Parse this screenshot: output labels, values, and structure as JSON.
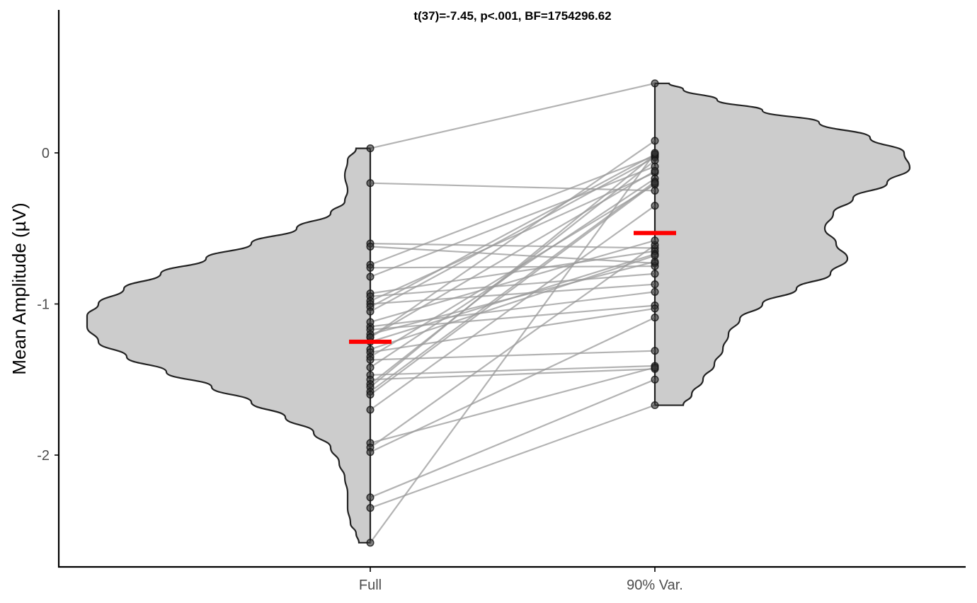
{
  "chart_data": {
    "type": "violin",
    "title": "t(37)=-7.45, p<.001, BF=1754296.62",
    "ylabel": "Mean Amplitude (µV)",
    "xlabel": "",
    "categories": [
      "Full",
      "90% Var."
    ],
    "ylim": [
      -2.75,
      0.95
    ],
    "yticks": [
      0,
      -1,
      -2
    ],
    "ytick_labels": [
      "0",
      "-1",
      "-2"
    ],
    "grid": false,
    "legend": "none",
    "colors": {
      "violin_fill": "#cccccc",
      "mean": "#ff0000",
      "points": "#333333",
      "lines": "#999999"
    },
    "means": [
      -1.25,
      -0.53
    ],
    "violin_density": {
      "Full": [
        [
          0.03,
          0.05
        ],
        [
          -0.05,
          0.08
        ],
        [
          -0.15,
          0.09
        ],
        [
          -0.25,
          0.08
        ],
        [
          -0.32,
          0.09
        ],
        [
          -0.4,
          0.14
        ],
        [
          -0.5,
          0.26
        ],
        [
          -0.6,
          0.42
        ],
        [
          -0.7,
          0.58
        ],
        [
          -0.8,
          0.74
        ],
        [
          -0.9,
          0.87
        ],
        [
          -1.0,
          0.96
        ],
        [
          -1.08,
          1.0
        ],
        [
          -1.15,
          1.0
        ],
        [
          -1.25,
          0.96
        ],
        [
          -1.35,
          0.86
        ],
        [
          -1.45,
          0.72
        ],
        [
          -1.55,
          0.56
        ],
        [
          -1.65,
          0.42
        ],
        [
          -1.75,
          0.3
        ],
        [
          -1.85,
          0.2
        ],
        [
          -1.95,
          0.14
        ],
        [
          -2.05,
          0.11
        ],
        [
          -2.15,
          0.09
        ],
        [
          -2.25,
          0.08
        ],
        [
          -2.35,
          0.08
        ],
        [
          -2.45,
          0.07
        ],
        [
          -2.52,
          0.05
        ],
        [
          -2.58,
          0.04
        ]
      ],
      "90% Var.": [
        [
          0.46,
          0.05
        ],
        [
          0.42,
          0.1
        ],
        [
          0.35,
          0.22
        ],
        [
          0.28,
          0.38
        ],
        [
          0.2,
          0.58
        ],
        [
          0.1,
          0.76
        ],
        [
          0.0,
          0.88
        ],
        [
          -0.1,
          0.9
        ],
        [
          -0.2,
          0.82
        ],
        [
          -0.3,
          0.7
        ],
        [
          -0.4,
          0.63
        ],
        [
          -0.5,
          0.6
        ],
        [
          -0.6,
          0.64
        ],
        [
          -0.7,
          0.68
        ],
        [
          -0.8,
          0.62
        ],
        [
          -0.9,
          0.5
        ],
        [
          -1.0,
          0.38
        ],
        [
          -1.1,
          0.3
        ],
        [
          -1.2,
          0.26
        ],
        [
          -1.3,
          0.24
        ],
        [
          -1.4,
          0.21
        ],
        [
          -1.5,
          0.17
        ],
        [
          -1.6,
          0.13
        ],
        [
          -1.67,
          0.1
        ]
      ]
    },
    "series": [
      {
        "name": "Full",
        "values": [
          0.03,
          -0.2,
          -0.6,
          -0.62,
          -0.74,
          -0.76,
          -0.82,
          -0.93,
          -0.95,
          -0.98,
          -1.0,
          -1.02,
          -1.05,
          -1.15,
          -1.17,
          -1.2,
          -1.22,
          -1.25,
          -1.3,
          -1.32,
          -1.35,
          -1.37,
          -1.42,
          -1.47,
          -1.5,
          -1.53,
          -1.55,
          -1.58,
          -1.6,
          -1.7,
          -1.92,
          -1.95,
          -1.98,
          -2.28,
          -2.35,
          -2.58,
          -1.22,
          -1.12
        ]
      },
      {
        "name": "90% Var.",
        "values": [
          0.46,
          -0.25,
          -0.63,
          -0.73,
          -0.02,
          -0.75,
          -0.09,
          -0.65,
          -0.8,
          -0.13,
          -0.87,
          -0.01,
          -0.03,
          -0.92,
          -1.01,
          -0.72,
          -0.12,
          -0.67,
          -0.68,
          -1.03,
          -0.21,
          -1.31,
          -0.17,
          -1.41,
          -1.43,
          -0.05,
          -0.01,
          -0.19,
          -0.2,
          -0.35,
          -1.42,
          -0.61,
          -1.09,
          -1.5,
          -1.67,
          0.0,
          0.08,
          -0.58
        ]
      }
    ]
  }
}
